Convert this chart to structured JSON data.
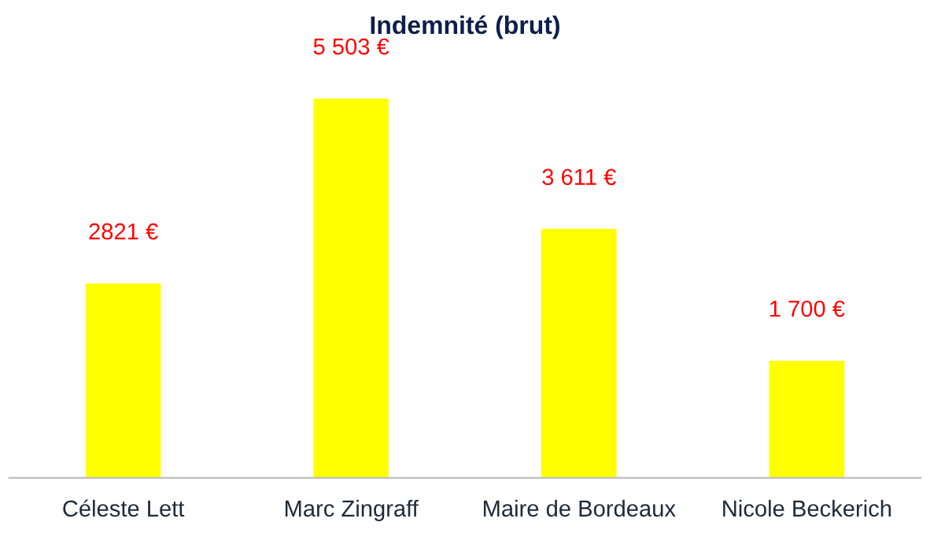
{
  "chart_data": {
    "type": "bar",
    "title": "Indemnité (brut)",
    "categories": [
      "Céleste Lett",
      "Marc Zingraff",
      "Maire de Bordeaux",
      "Nicole Beckerich"
    ],
    "values": [
      2821,
      5503,
      3611,
      1700
    ],
    "value_labels": [
      "2821 €",
      "5 503 €",
      "3 611 €",
      "1 700 €"
    ],
    "color": "#ffff00",
    "grid": false,
    "legend": false
  }
}
